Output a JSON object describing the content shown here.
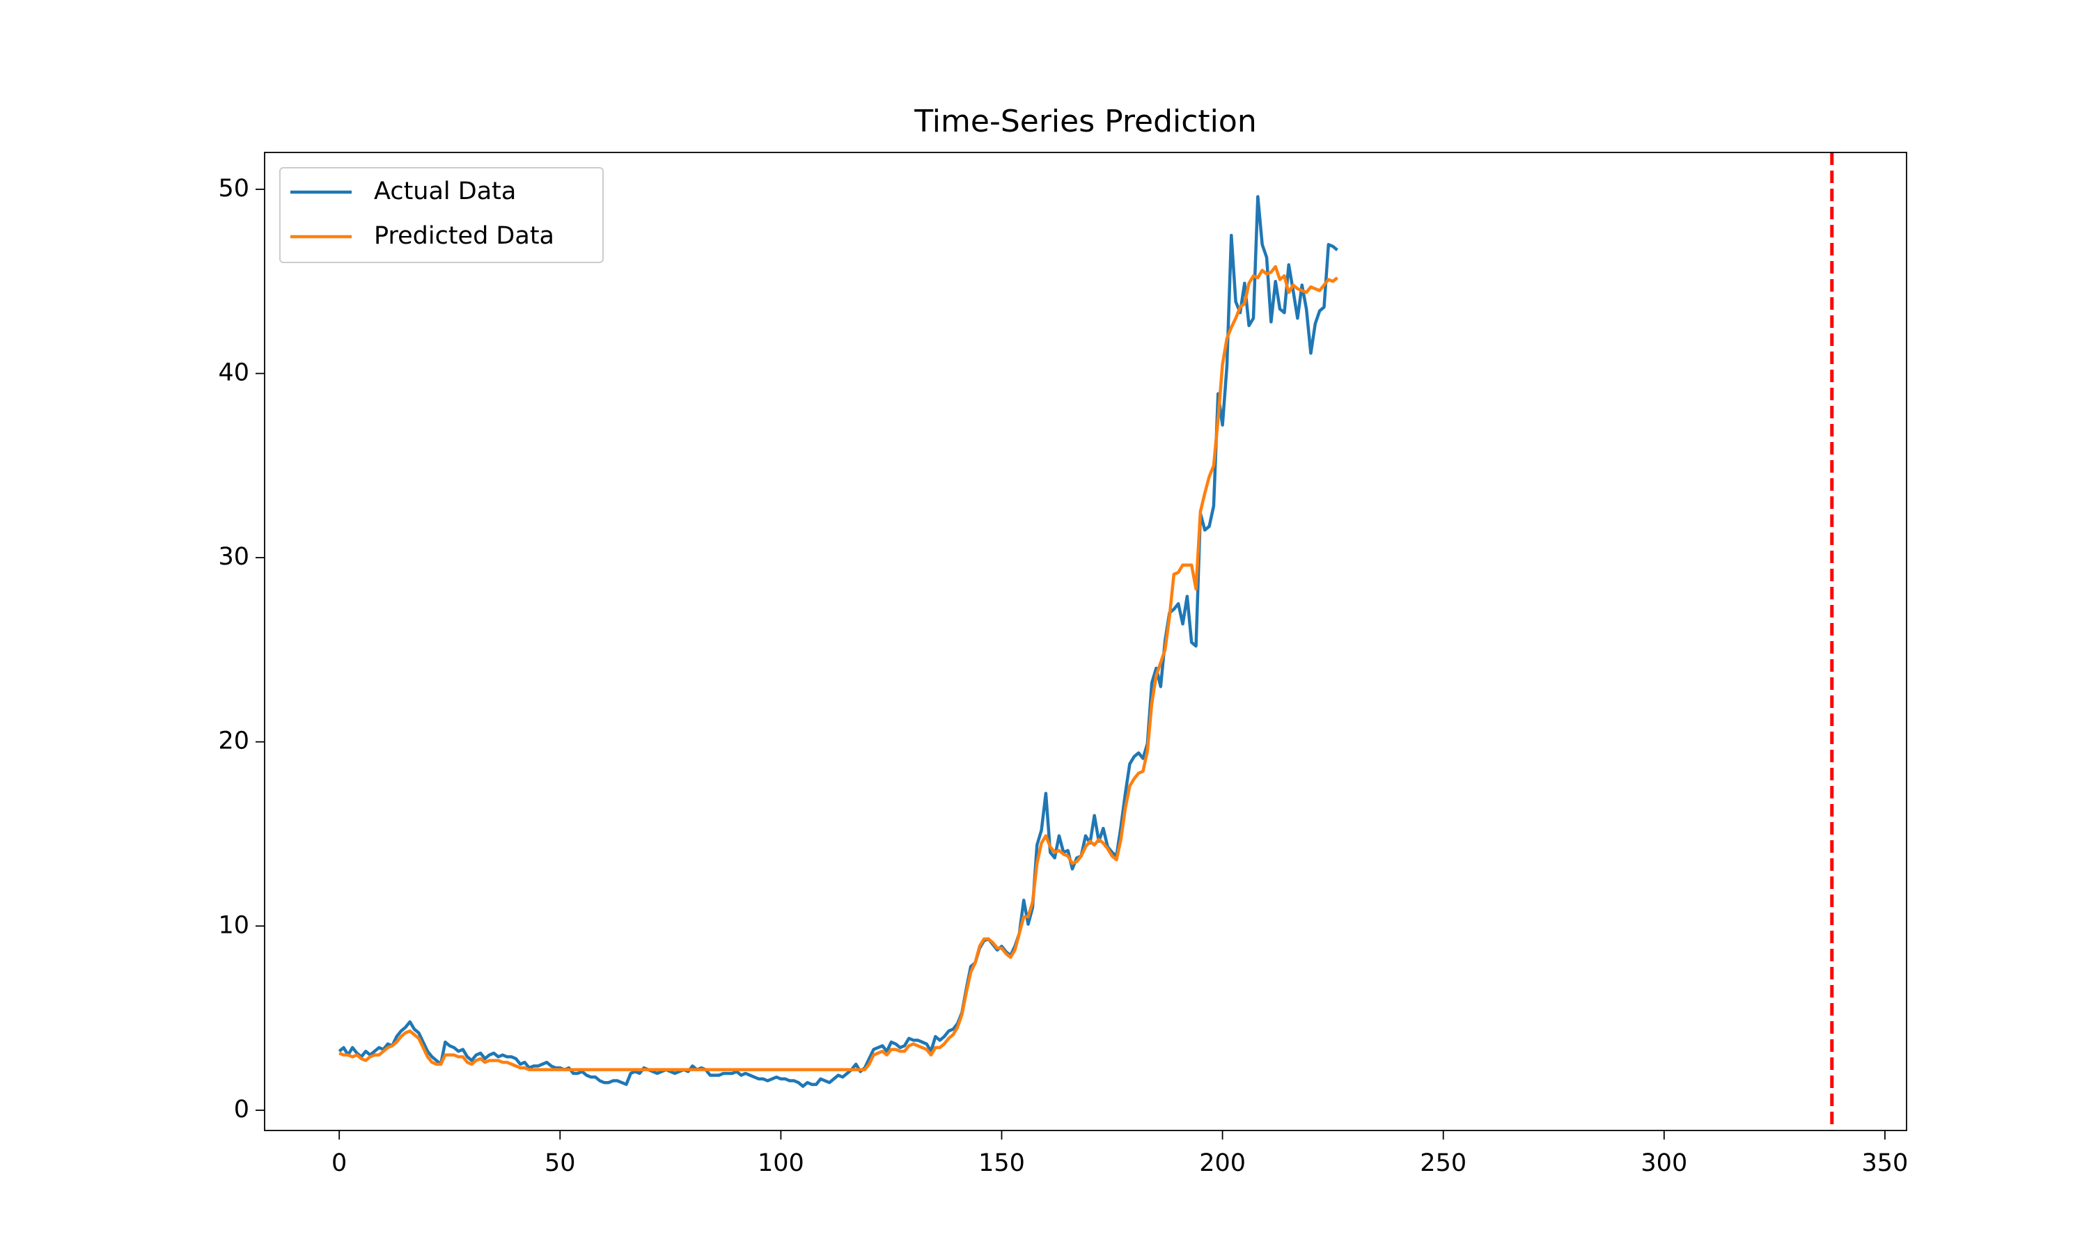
{
  "chart_data": {
    "type": "line",
    "title": "Time-Series Prediction",
    "x": [
      0,
      1,
      2,
      3,
      4,
      5,
      6,
      7,
      8,
      9,
      10,
      11,
      12,
      13,
      14,
      15,
      16,
      17,
      18,
      19,
      20,
      21,
      22,
      23,
      24,
      25,
      26,
      27,
      28,
      29,
      30,
      31,
      32,
      33,
      34,
      35,
      36,
      37,
      38,
      39,
      40,
      41,
      42,
      43,
      44,
      45,
      46,
      47,
      48,
      49,
      50,
      51,
      52,
      53,
      54,
      55,
      56,
      57,
      58,
      59,
      60,
      61,
      62,
      63,
      64,
      65,
      66,
      67,
      68,
      69,
      70,
      71,
      72,
      73,
      74,
      75,
      76,
      77,
      78,
      79,
      80,
      81,
      82,
      83,
      84,
      85,
      86,
      87,
      88,
      89,
      90,
      91,
      92,
      93,
      94,
      95,
      96,
      97,
      98,
      99,
      100,
      101,
      102,
      103,
      104,
      105,
      106,
      107,
      108,
      109,
      110,
      111,
      112,
      113,
      114,
      115,
      116,
      117,
      118,
      119,
      120,
      121,
      122,
      123,
      124,
      125,
      126,
      127,
      128,
      129,
      130,
      131,
      132,
      133,
      134,
      135,
      136,
      137,
      138,
      139,
      140,
      141,
      142,
      143,
      144,
      145,
      146,
      147,
      148,
      149,
      150,
      151,
      152,
      153,
      154,
      155,
      156,
      157,
      158,
      159,
      160,
      161,
      162,
      163,
      164,
      165,
      166,
      167,
      168,
      169,
      170,
      171,
      172,
      173,
      174,
      175,
      176,
      177,
      178,
      179,
      180,
      181,
      182,
      183,
      184,
      185,
      186,
      187,
      188,
      189,
      190,
      191,
      192,
      193,
      194,
      195,
      196,
      197,
      198,
      199,
      200,
      201,
      202,
      203,
      204,
      205,
      206,
      207,
      208,
      209,
      210,
      211,
      212,
      213,
      214,
      215,
      216,
      217,
      218,
      219,
      220,
      221,
      222,
      223,
      224,
      225,
      226
    ],
    "series": [
      {
        "name": "Actual Data",
        "color": "#1f77b4",
        "values": [
          3.2,
          3.4,
          3.0,
          3.4,
          3.1,
          2.9,
          3.2,
          3.0,
          3.2,
          3.4,
          3.3,
          3.6,
          3.5,
          4.0,
          4.3,
          4.5,
          4.8,
          4.4,
          4.2,
          3.7,
          3.2,
          2.9,
          2.7,
          2.5,
          3.7,
          3.5,
          3.4,
          3.2,
          3.3,
          2.9,
          2.7,
          3.0,
          3.1,
          2.8,
          3.0,
          3.1,
          2.9,
          3.0,
          2.9,
          2.9,
          2.8,
          2.5,
          2.6,
          2.3,
          2.4,
          2.4,
          2.5,
          2.6,
          2.4,
          2.3,
          2.3,
          2.2,
          2.3,
          2.0,
          2.0,
          2.1,
          1.9,
          1.8,
          1.8,
          1.6,
          1.5,
          1.5,
          1.6,
          1.6,
          1.5,
          1.4,
          2.0,
          2.1,
          2.0,
          2.3,
          2.2,
          2.1,
          2.0,
          2.1,
          2.2,
          2.1,
          2.0,
          2.1,
          2.2,
          2.1,
          2.4,
          2.2,
          2.3,
          2.2,
          1.9,
          1.9,
          1.9,
          2.0,
          2.0,
          2.0,
          2.1,
          1.9,
          2.0,
          1.9,
          1.8,
          1.7,
          1.7,
          1.6,
          1.7,
          1.8,
          1.7,
          1.7,
          1.6,
          1.6,
          1.5,
          1.3,
          1.5,
          1.4,
          1.4,
          1.7,
          1.6,
          1.5,
          1.7,
          1.9,
          1.8,
          2.0,
          2.2,
          2.5,
          2.1,
          2.3,
          2.8,
          3.3,
          3.4,
          3.5,
          3.2,
          3.7,
          3.6,
          3.4,
          3.5,
          3.9,
          3.8,
          3.8,
          3.7,
          3.6,
          3.2,
          4.0,
          3.8,
          4.0,
          4.3,
          4.4,
          4.7,
          5.3,
          6.6,
          7.8,
          8.0,
          8.8,
          9.2,
          9.3,
          9.0,
          8.7,
          8.9,
          8.6,
          8.4,
          8.9,
          9.6,
          11.4,
          10.1,
          11.0,
          14.4,
          15.2,
          17.2,
          14.0,
          13.7,
          14.9,
          14.0,
          14.1,
          13.1,
          13.7,
          13.8,
          14.9,
          14.5,
          16.0,
          14.6,
          15.3,
          14.3,
          14.0,
          13.8,
          15.4,
          17.2,
          18.8,
          19.2,
          19.4,
          19.1,
          19.9,
          23.2,
          24.0,
          23.0,
          25.5,
          27.0,
          27.2,
          27.5,
          26.4,
          27.9,
          25.4,
          25.2,
          32.4,
          31.5,
          31.7,
          32.8,
          38.9,
          37.2,
          40.4,
          47.5,
          43.9,
          43.3,
          44.9,
          42.6,
          43.0,
          49.6,
          47.0,
          46.3,
          42.8,
          45.0,
          43.5,
          43.3,
          45.9,
          44.5,
          43.0,
          44.8,
          43.5,
          41.1,
          42.7,
          43.4,
          43.6,
          47.0,
          46.9,
          46.7
        ]
      },
      {
        "name": "Predicted Data",
        "color": "#ff7f0e",
        "values": [
          3.1,
          3.0,
          3.0,
          2.9,
          3.0,
          2.8,
          2.7,
          2.9,
          3.0,
          3.0,
          3.2,
          3.4,
          3.5,
          3.7,
          4.0,
          4.2,
          4.3,
          4.1,
          3.9,
          3.4,
          2.9,
          2.6,
          2.5,
          2.5,
          3.0,
          3.0,
          3.0,
          2.9,
          2.9,
          2.6,
          2.5,
          2.7,
          2.8,
          2.6,
          2.7,
          2.7,
          2.7,
          2.6,
          2.6,
          2.5,
          2.4,
          2.3,
          2.3,
          2.2,
          2.2,
          2.2,
          2.2,
          2.2,
          2.2,
          2.2,
          2.2,
          2.2,
          2.2,
          2.2,
          2.2,
          2.2,
          2.2,
          2.2,
          2.2,
          2.2,
          2.2,
          2.2,
          2.2,
          2.2,
          2.2,
          2.2,
          2.2,
          2.2,
          2.2,
          2.2,
          2.2,
          2.2,
          2.2,
          2.2,
          2.2,
          2.2,
          2.2,
          2.2,
          2.2,
          2.2,
          2.2,
          2.2,
          2.2,
          2.2,
          2.2,
          2.2,
          2.2,
          2.2,
          2.2,
          2.2,
          2.2,
          2.2,
          2.2,
          2.2,
          2.2,
          2.2,
          2.2,
          2.2,
          2.2,
          2.2,
          2.2,
          2.2,
          2.2,
          2.2,
          2.2,
          2.2,
          2.2,
          2.2,
          2.2,
          2.2,
          2.2,
          2.2,
          2.2,
          2.2,
          2.2,
          2.2,
          2.2,
          2.2,
          2.2,
          2.2,
          2.5,
          3.0,
          3.1,
          3.2,
          3.0,
          3.3,
          3.3,
          3.2,
          3.2,
          3.5,
          3.6,
          3.5,
          3.4,
          3.3,
          3.0,
          3.4,
          3.4,
          3.6,
          3.9,
          4.1,
          4.5,
          5.2,
          6.4,
          7.5,
          8.0,
          8.9,
          9.3,
          9.3,
          9.1,
          8.8,
          8.8,
          8.5,
          8.3,
          8.7,
          9.6,
          10.5,
          10.5,
          11.3,
          13.4,
          14.5,
          14.9,
          14.3,
          14.0,
          14.1,
          13.9,
          13.8,
          13.4,
          13.5,
          13.8,
          14.3,
          14.6,
          14.4,
          14.7,
          14.5,
          14.2,
          13.8,
          13.6,
          14.7,
          16.4,
          17.6,
          18.0,
          18.3,
          18.4,
          19.5,
          22.1,
          23.6,
          24.3,
          25.0,
          26.8,
          29.1,
          29.2,
          29.6,
          29.6,
          29.6,
          28.3,
          32.5,
          33.5,
          34.4,
          35.0,
          37.5,
          40.5,
          41.9,
          42.5,
          43.0,
          43.6,
          43.8,
          44.9,
          45.3,
          45.2,
          45.6,
          45.4,
          45.5,
          45.8,
          45.1,
          45.3,
          44.4,
          44.8,
          44.6,
          44.5,
          44.4,
          44.7,
          44.6,
          44.5,
          44.8,
          45.1,
          45.0,
          45.2
        ]
      }
    ],
    "vline": 338,
    "vline_color": "#ff0000",
    "vline_style": "dashed",
    "xlim": [
      -16.9,
      354.9
    ],
    "ylim": [
      -1.1,
      52.0
    ],
    "xticks": [
      0,
      50,
      100,
      150,
      200,
      250,
      300,
      350
    ],
    "yticks": [
      0,
      10,
      20,
      30,
      40,
      50
    ],
    "grid": false,
    "legend": "upper left"
  }
}
